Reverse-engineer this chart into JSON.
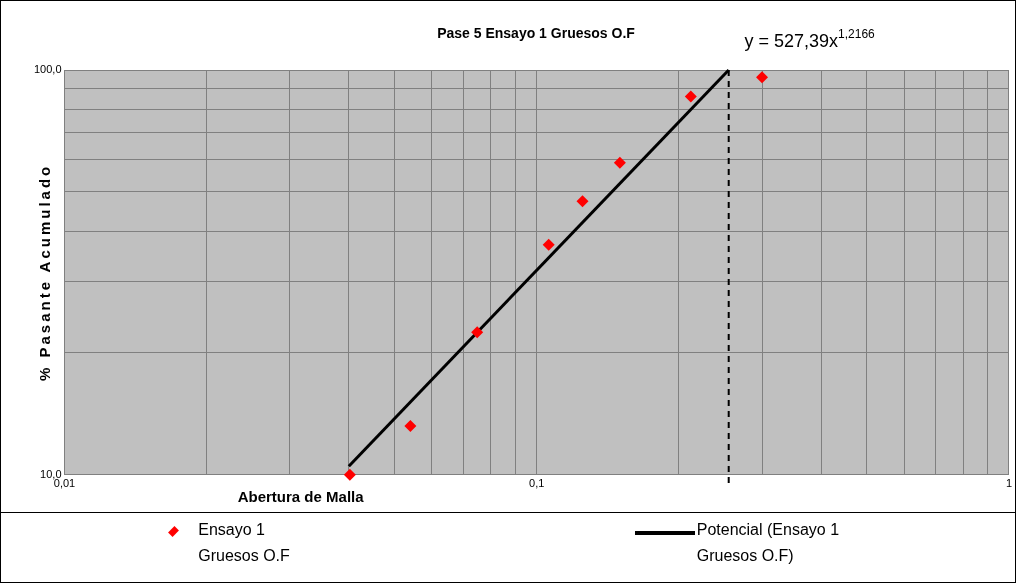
{
  "chart_data": {
    "type": "scatter",
    "title": "Pase 5 Ensayo 1 Gruesos O.F",
    "xlabel": "Abertura de Malla",
    "ylabel": "% Pasante Acumulado",
    "annotations": [
      "y = 527,39x$^{1,2166}$"
    ],
    "log": "xy",
    "grid": true,
    "legend": "bottom",
    "marker": "diamond",
    "xlim": [
      0.01,
      1
    ],
    "xticks": [
      {
        "value": 0.01,
        "label": "0,01"
      },
      {
        "value": 0.02,
        "label": null
      },
      {
        "value": 0.03,
        "label": null
      },
      {
        "value": 0.04,
        "label": null
      },
      {
        "value": 0.05,
        "label": null
      },
      {
        "value": 0.06,
        "label": null
      },
      {
        "value": 0.07,
        "label": null
      },
      {
        "value": 0.08,
        "label": null
      },
      {
        "value": 0.09,
        "label": null
      },
      {
        "value": 0.1,
        "label": "0,1"
      },
      {
        "value": 0.2,
        "label": null
      },
      {
        "value": 0.3,
        "label": null
      },
      {
        "value": 0.4,
        "label": null
      },
      {
        "value": 0.5,
        "label": null
      },
      {
        "value": 0.6,
        "label": null
      },
      {
        "value": 0.7,
        "label": null
      },
      {
        "value": 0.8,
        "label": null
      },
      {
        "value": 0.9,
        "label": null
      },
      1
    ],
    "ylim": [
      10,
      100
    ],
    "yticks": [
      {
        "value": 10,
        "label": "10,0"
      },
      {
        "value": 20,
        "label": null
      },
      {
        "value": 30,
        "label": null
      },
      {
        "value": 40,
        "label": null
      },
      {
        "value": 50,
        "label": null
      },
      {
        "value": 60,
        "label": null
      },
      {
        "value": 70,
        "label": null
      },
      {
        "value": 80,
        "label": null
      },
      {
        "value": 90,
        "label": null
      },
      {
        "value": 100,
        "label": "100,0"
      }
    ],
    "ref_lines": [
      {
        "axis": "x",
        "value": 0.255,
        "color": "#000000",
        "line_style": "dashed"
      }
    ],
    "series": [
      {
        "name": "Ensayo 1 Gruesos O.F",
        "type": "scatter",
        "color": "#ff0000",
        "x": [
          0.0402,
          0.054,
          0.0748,
          0.106,
          0.125,
          0.15,
          0.212,
          0.3
        ],
        "values": [
          10,
          13.2,
          22.5,
          37,
          47.4,
          59,
          86,
          96
        ]
      },
      {
        "name": "Potencial (Ensayo 1 Gruesos O.F)",
        "type": "line",
        "color": "#000000",
        "line_style": "solid",
        "marker": "none",
        "x": [
          0.04,
          0.255
        ],
        "values": [
          10.5,
          100
        ]
      }
    ]
  }
}
